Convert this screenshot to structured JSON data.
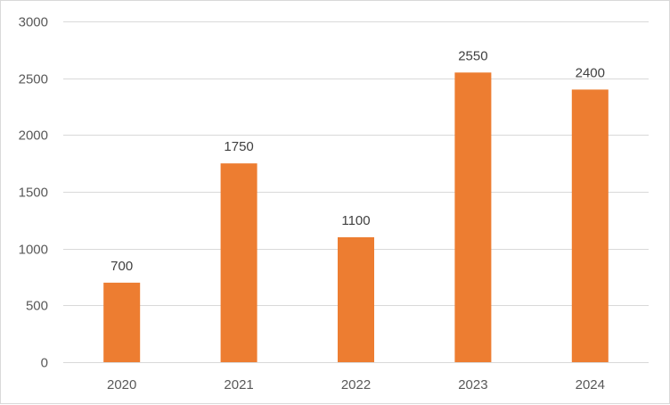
{
  "colors": {
    "bar": "#ED7D31",
    "grid": "#D9D9D9",
    "tick_text": "#595959",
    "label_text": "#404040"
  },
  "chart_data": {
    "type": "bar",
    "title": "",
    "xlabel": "",
    "ylabel": "",
    "categories": [
      "2020",
      "2021",
      "2022",
      "2023",
      "2024"
    ],
    "values": [
      700,
      1750,
      1100,
      2550,
      2400
    ],
    "ylim": [
      0,
      3000
    ],
    "yticks": [
      0,
      500,
      1000,
      1500,
      2000,
      2500,
      3000
    ],
    "grid": true,
    "legend": "none",
    "data_labels": true
  }
}
